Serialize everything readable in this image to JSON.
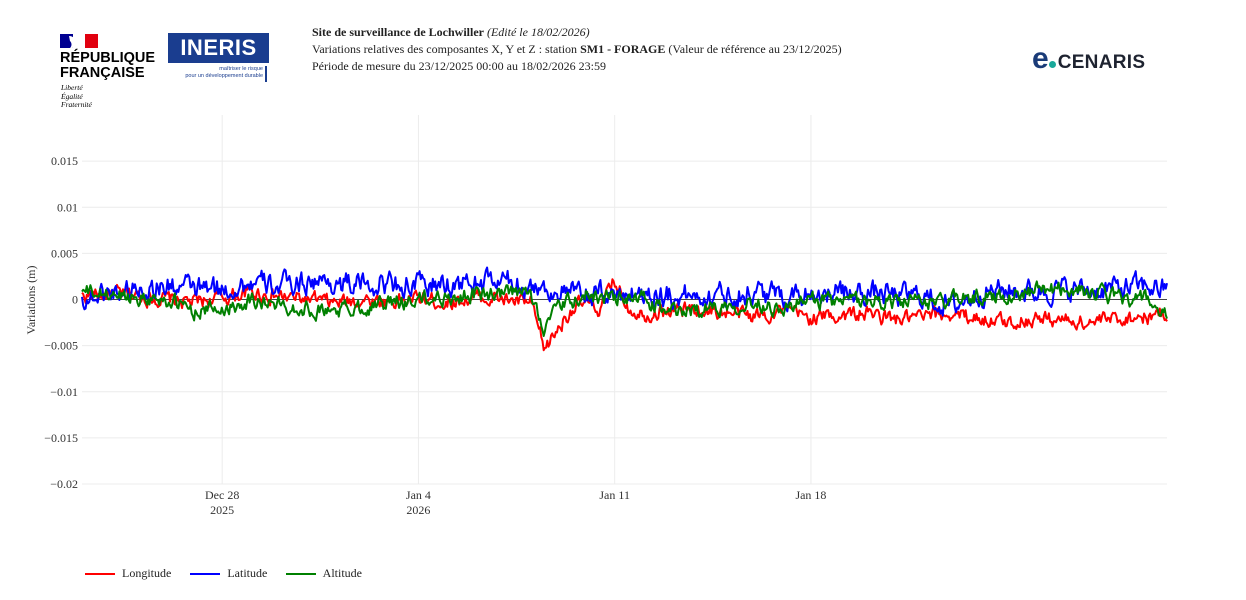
{
  "header": {
    "site_label": "Site de surveillance de Lochwiller",
    "edit_note": "(Edité le 18/02/2026)",
    "line2_prefix": "Variations relatives des composantes X, Y et Z : station",
    "station": "SM1 - FORAGE",
    "line2_suffix": "(Valeur de référence au 23/12/2025)",
    "period": "Période de mesure du 23/12/2025 00:00 au 18/02/2026 23:59"
  },
  "logos": {
    "rf_title_1": "RÉPUBLIQUE",
    "rf_title_2": "FRANÇAISE",
    "rf_motto_1": "Liberté",
    "rf_motto_2": "Égalité",
    "rf_motto_3": "Fraternité",
    "ineris_name": "INERIS",
    "ineris_tag_1": "maîtriser le risque",
    "ineris_tag_2": "pour un développement durable",
    "ecenaris_e": "e",
    "ecenaris_name": "CENARIS"
  },
  "chart_data": {
    "type": "line",
    "title": "",
    "xlabel": "",
    "ylabel": "Variations (m)",
    "ylim": [
      -0.02,
      0.02
    ],
    "yticks": [
      0.015,
      0.01,
      0.005,
      0,
      -0.005,
      -0.01,
      -0.015,
      -0.02
    ],
    "ytick_labels": [
      "0.015",
      "0.01",
      "0.005",
      "0",
      "−0.005",
      "−0.01",
      "−0.015",
      "−0.02"
    ],
    "xlim_days": [
      0,
      38.7
    ],
    "xticks": [
      {
        "day": 5,
        "label": "Dec 28",
        "sublabel": "2025"
      },
      {
        "day": 12,
        "label": "Jan 4",
        "sublabel": "2026"
      },
      {
        "day": 19,
        "label": "Jan 11",
        "sublabel": ""
      },
      {
        "day": 26,
        "label": "Jan 18",
        "sublabel": ""
      }
    ],
    "x_origin": "2025-12-23",
    "series": [
      {
        "name": "Longitude",
        "color": "#ff0000",
        "x": [
          0,
          1,
          2,
          3,
          4,
          5,
          6,
          7,
          8,
          9,
          10,
          11,
          12,
          13,
          14,
          15,
          16,
          16.5,
          17,
          17.5,
          18,
          18.5,
          19,
          19.5,
          20,
          21,
          22,
          23,
          24,
          25,
          26,
          27,
          28,
          29,
          30,
          31,
          32,
          33,
          34,
          35,
          36,
          37,
          38,
          38.7
        ],
        "y": [
          0.0004,
          0.0006,
          0.0004,
          0,
          -0.0003,
          0.0002,
          0.0008,
          0.0003,
          0,
          -0.0004,
          0,
          -0.0002,
          0.0001,
          -0.0003,
          0.0002,
          0,
          -0.0004,
          -0.0055,
          -0.003,
          -0.0008,
          -0.0005,
          -0.001,
          0.002,
          -0.0008,
          -0.0015,
          -0.0012,
          -0.001,
          -0.0015,
          -0.0018,
          -0.0012,
          -0.002,
          -0.0017,
          -0.0015,
          -0.0022,
          -0.002,
          -0.0015,
          -0.002,
          -0.0025,
          -0.002,
          -0.0022,
          -0.0025,
          -0.002,
          -0.0018,
          -0.0015
        ]
      },
      {
        "name": "Latitude",
        "color": "#0000ff",
        "x": [
          0,
          1,
          2,
          3,
          4,
          5,
          6,
          7,
          8,
          9,
          10,
          11,
          12,
          13,
          14,
          15,
          16,
          17,
          18,
          19,
          20,
          21,
          22,
          23,
          24,
          25,
          26,
          27,
          28,
          29,
          30,
          31,
          32,
          33,
          34,
          35,
          36,
          37,
          38,
          38.7
        ],
        "y": [
          0,
          0.0008,
          0.0012,
          0.0015,
          0.0012,
          0.001,
          0.0018,
          0.0014,
          0.002,
          0.0018,
          0.0016,
          0.0018,
          0.0015,
          0.0016,
          0.0018,
          0.002,
          0.0015,
          0.0008,
          0.0005,
          0.0006,
          0.0008,
          0.0004,
          0.0005,
          0.0006,
          0.0008,
          0.0004,
          0.0008,
          0.0006,
          0.0008,
          0.0004,
          0.0004,
          -0.0008,
          0.0008,
          0.001,
          0.0009,
          0.0011,
          0.001,
          0.0012,
          0.0015,
          0.001
        ]
      },
      {
        "name": "Altitude",
        "color": "#008000",
        "x": [
          0,
          1,
          2,
          3,
          4,
          5,
          6,
          7,
          8,
          9,
          10,
          11,
          12,
          13,
          14,
          15,
          16,
          16.5,
          17,
          18,
          19,
          20,
          21,
          22,
          23,
          24,
          25,
          26,
          27,
          28,
          29,
          30,
          31,
          32,
          33,
          34,
          35,
          36,
          37,
          38,
          38.7
        ],
        "y": [
          0.0008,
          0.0005,
          0.0003,
          0,
          -0.0012,
          -0.001,
          0,
          -0.0006,
          -0.001,
          -0.0012,
          -0.0008,
          -0.0004,
          0,
          0.0002,
          0.0005,
          0.0006,
          0.0006,
          -0.003,
          -0.0008,
          0.0004,
          0.0002,
          0,
          -0.0015,
          -0.001,
          -0.0006,
          -0.0002,
          -0.001,
          0,
          -0.0004,
          0,
          -0.0002,
          -0.0004,
          0,
          0.0002,
          0.0006,
          0.001,
          0.0012,
          0.0008,
          0.0002,
          0,
          -0.002
        ]
      }
    ]
  }
}
